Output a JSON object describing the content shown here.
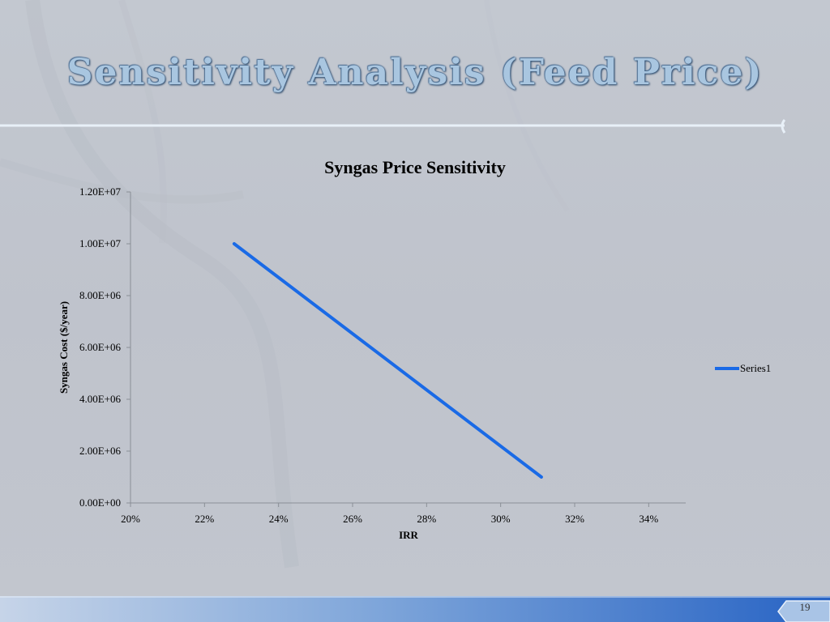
{
  "slide": {
    "title": "Sensitivity Analysis (Feed Price)",
    "page_number": "19"
  },
  "colors": {
    "line": "#1a6ae6",
    "title_fill": "#a9c6e0",
    "accent": "#2f6fc9"
  },
  "chart_data": {
    "type": "line",
    "title": "Syngas Price Sensitivity",
    "xlabel": "IRR",
    "ylabel": "Syngas Cost ($/year)",
    "xlim": [
      0.2,
      0.35
    ],
    "ylim": [
      0,
      12000000
    ],
    "x_ticks": [
      0.2,
      0.22,
      0.24,
      0.26,
      0.28,
      0.3,
      0.32,
      0.34
    ],
    "x_tick_labels": [
      "20%",
      "22%",
      "24%",
      "26%",
      "28%",
      "30%",
      "32%",
      "34%"
    ],
    "y_ticks": [
      0,
      2000000,
      4000000,
      6000000,
      8000000,
      10000000,
      12000000
    ],
    "y_tick_labels": [
      "0.00E+00",
      "2.00E+06",
      "4.00E+06",
      "6.00E+06",
      "8.00E+06",
      "1.00E+07",
      "1.20E+07"
    ],
    "legend_position": "right",
    "grid": false,
    "series": [
      {
        "name": "Series1",
        "x": [
          0.228,
          0.311
        ],
        "y": [
          10000000,
          1000000
        ]
      }
    ]
  }
}
